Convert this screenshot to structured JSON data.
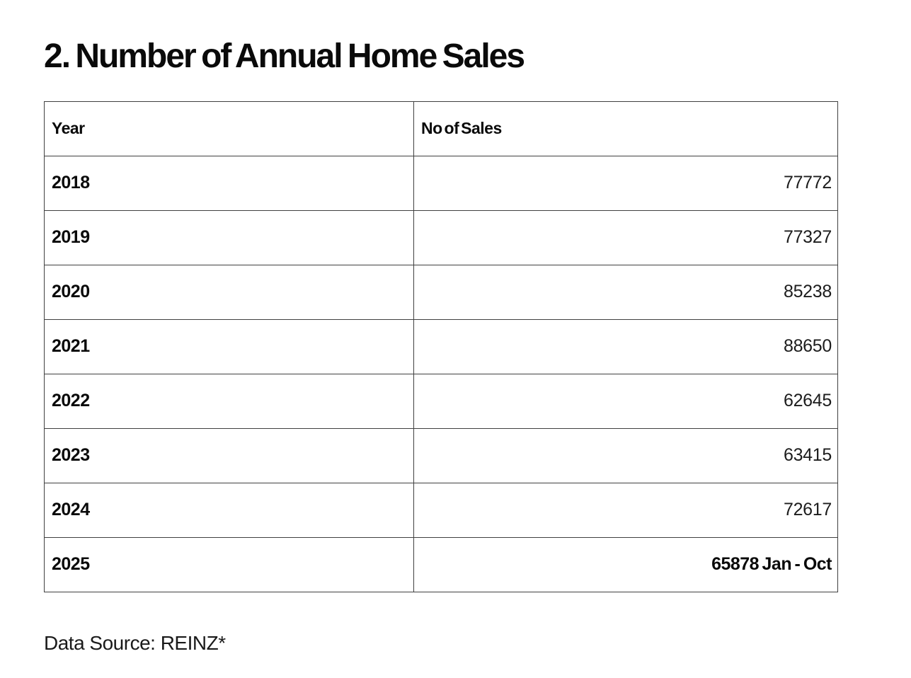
{
  "page": {
    "title": "2. Number of Annual Home Sales",
    "source_note": "Data Source: REINZ*"
  },
  "table": {
    "headers": {
      "year": "Year",
      "sales": "No of Sales"
    },
    "rows": [
      {
        "year": "2018",
        "sales": "77772"
      },
      {
        "year": "2019",
        "sales": "77327"
      },
      {
        "year": "2020",
        "sales": "85238"
      },
      {
        "year": "2021",
        "sales": "88650"
      },
      {
        "year": "2022",
        "sales": "62645"
      },
      {
        "year": "2023",
        "sales": "63415"
      },
      {
        "year": "2024",
        "sales": "72617"
      },
      {
        "year": "2025",
        "sales": "65878 Jan - Oct"
      }
    ]
  },
  "chart_data": {
    "type": "table",
    "title": "2. Number of Annual Home Sales",
    "columns": [
      "Year",
      "No of Sales"
    ],
    "categories": [
      "2018",
      "2019",
      "2020",
      "2021",
      "2022",
      "2023",
      "2024",
      "2025"
    ],
    "values": [
      77772,
      77327,
      85238,
      88650,
      62645,
      63415,
      72617,
      65878
    ],
    "annotations": [
      {
        "category": "2025",
        "note": "Jan - Oct"
      }
    ],
    "source": "Data Source: REINZ*"
  }
}
